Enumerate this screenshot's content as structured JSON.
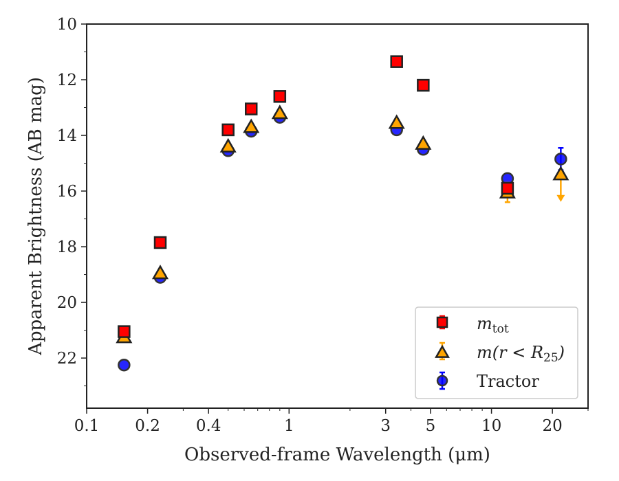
{
  "chart_data": {
    "type": "scatter",
    "title": "",
    "xlabel": "Observed-frame Wavelength (μm)",
    "ylabel": "Apparent Brightness (AB mag)",
    "xscale": "log",
    "xlim": [
      0.1,
      30
    ],
    "ylim": [
      23.8,
      10
    ],
    "y_inverted": true,
    "x_ticks": [
      0.1,
      0.2,
      0.4,
      1,
      3,
      5,
      10,
      20
    ],
    "x_tick_labels": [
      "0.1",
      "0.2",
      "0.4",
      "1",
      "3",
      "5",
      "10",
      "20"
    ],
    "y_ticks": [
      10,
      12,
      14,
      16,
      18,
      20,
      22
    ],
    "y_tick_labels": [
      "10",
      "12",
      "14",
      "16",
      "18",
      "20",
      "22"
    ],
    "legend_position": "lower-right",
    "series": [
      {
        "name": "m_tot",
        "label_main": "m",
        "label_sub": "tot",
        "marker": "square",
        "color": "#ff0000",
        "edge_color": "#222222",
        "errbar_color": "#ff0000",
        "x": [
          0.153,
          0.231,
          0.5,
          0.65,
          0.9,
          3.4,
          4.6,
          12.0
        ],
        "y": [
          21.05,
          17.85,
          13.8,
          13.05,
          12.6,
          11.35,
          12.2,
          15.9
        ]
      },
      {
        "name": "m(r < R25)",
        "label_main": "m(r < R",
        "label_sub": "25",
        "label_end": ")",
        "marker": "triangle",
        "color": "#ffa500",
        "edge_color": "#222222",
        "errbar_color": "#ffa500",
        "x": [
          0.153,
          0.231,
          0.5,
          0.65,
          0.9,
          3.4,
          4.6,
          12.0,
          22.0
        ],
        "y": [
          21.25,
          18.95,
          14.4,
          13.7,
          13.2,
          13.55,
          14.3,
          16.05,
          15.4
        ],
        "upper_limits_at": [
          22.0
        ],
        "yerr": [
          0.1,
          0.1,
          0.1,
          0.1,
          0.1,
          0.1,
          0.1,
          0.35,
          0.8
        ]
      },
      {
        "name": "Tractor",
        "marker": "circle",
        "color": "#0000ff",
        "edge_color": "#333333",
        "errbar_color": "#0000ff",
        "x": [
          0.153,
          0.231,
          0.5,
          0.65,
          0.9,
          3.4,
          4.6,
          12.0,
          22.0
        ],
        "y": [
          22.25,
          19.1,
          14.55,
          13.85,
          13.35,
          13.8,
          14.5,
          15.55,
          14.85
        ],
        "yerr": [
          0.05,
          0.05,
          0.05,
          0.05,
          0.05,
          0.05,
          0.05,
          0.1,
          0.4
        ]
      }
    ],
    "legend": [
      {
        "key": "mtot"
      },
      {
        "key": "mr25"
      },
      {
        "key": "tractor",
        "text": "Tractor"
      }
    ]
  }
}
